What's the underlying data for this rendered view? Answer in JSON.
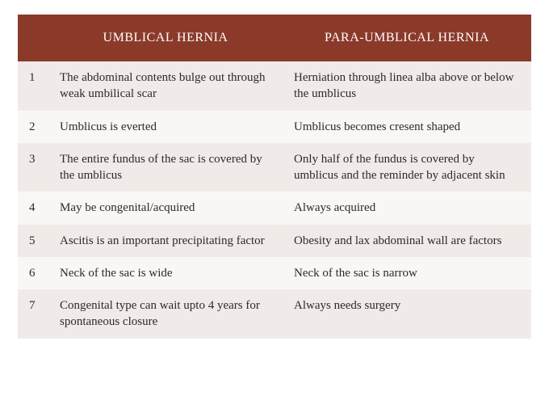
{
  "table": {
    "header_bg": "#8b3a2a",
    "header_fg": "#ffffff",
    "row_odd_bg": "#f0ebe8",
    "row_even_bg": "#f9f7f5",
    "text_color": "#2b2b2b",
    "font_family": "Georgia, serif",
    "header_fontsize": 16,
    "body_fontsize": 15,
    "columns": [
      "",
      "UMBLICAL HERNIA",
      "PARA-UMBLICAL HERNIA"
    ],
    "rows": [
      {
        "n": "1",
        "a": "The abdominal contents bulge out through weak umbilical scar",
        "b": "Herniation through linea alba above or below the umblicus"
      },
      {
        "n": "2",
        "a": "Umblicus is everted",
        "b": "Umblicus becomes cresent shaped"
      },
      {
        "n": "3",
        "a": "The entire fundus of the sac is covered by the umblicus",
        "b": "Only half of the fundus is covered by umblicus and the reminder by adjacent skin"
      },
      {
        "n": "4",
        "a": "May be congenital/acquired",
        "b": "Always acquired"
      },
      {
        "n": "5",
        "a": "Ascitis is an important precipitating factor",
        "b": "Obesity and lax abdominal wall are factors"
      },
      {
        "n": "6",
        "a": "Neck of the sac is wide",
        "b": "Neck of the sac is narrow"
      },
      {
        "n": "7",
        "a": "Congenital type can wait upto 4 years for spontaneous closure",
        "b": "Always needs surgery"
      }
    ]
  }
}
